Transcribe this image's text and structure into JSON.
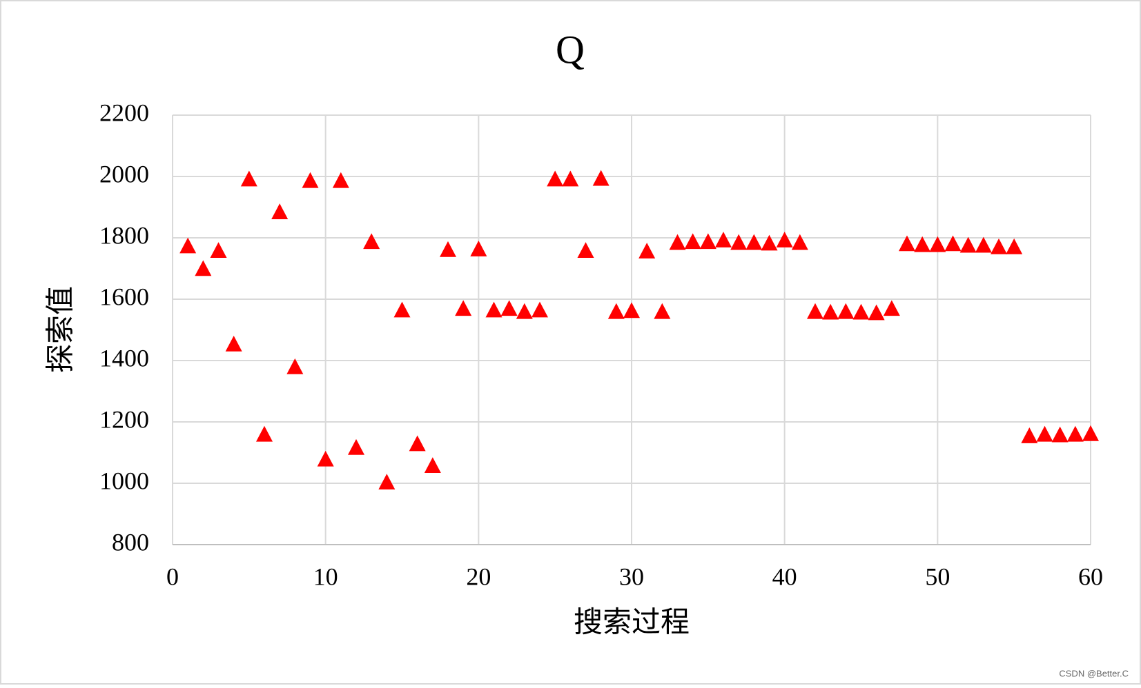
{
  "chart_data": {
    "type": "scatter",
    "title": "Q",
    "x_label": "搜索过程",
    "y_label": "探索值",
    "watermark": "CSDN @Better.C",
    "marker": "triangle",
    "color": "#ff0000",
    "grid": true,
    "xlim": [
      0,
      60
    ],
    "xticks": [
      0,
      10,
      20,
      30,
      40,
      50,
      60
    ],
    "ylim": [
      800,
      2200
    ],
    "yticks": [
      800,
      1000,
      1200,
      1400,
      1600,
      1800,
      2000,
      2200
    ],
    "x": [
      1,
      2,
      3,
      4,
      5,
      6,
      7,
      8,
      9,
      10,
      11,
      12,
      13,
      14,
      15,
      16,
      17,
      18,
      19,
      20,
      21,
      22,
      23,
      24,
      25,
      26,
      27,
      28,
      29,
      30,
      31,
      32,
      33,
      34,
      35,
      36,
      37,
      38,
      39,
      40,
      41,
      42,
      43,
      44,
      45,
      46,
      47,
      48,
      49,
      50,
      51,
      52,
      53,
      54,
      55,
      56,
      57,
      58,
      59,
      60
    ],
    "values": [
      1774,
      1700,
      1759,
      1454,
      1992,
      1160,
      1885,
      1380,
      1987,
      1079,
      1987,
      1117,
      1788,
      1004,
      1565,
      1129,
      1058,
      1762,
      1570,
      1764,
      1565,
      1570,
      1560,
      1565,
      1992,
      1992,
      1759,
      1994,
      1560,
      1563,
      1757,
      1560,
      1785,
      1788,
      1788,
      1793,
      1785,
      1785,
      1783,
      1793,
      1785,
      1560,
      1558,
      1560,
      1558,
      1556,
      1570,
      1781,
      1778,
      1778,
      1781,
      1776,
      1776,
      1771,
      1771,
      1155,
      1160,
      1158,
      1160,
      1162
    ]
  }
}
